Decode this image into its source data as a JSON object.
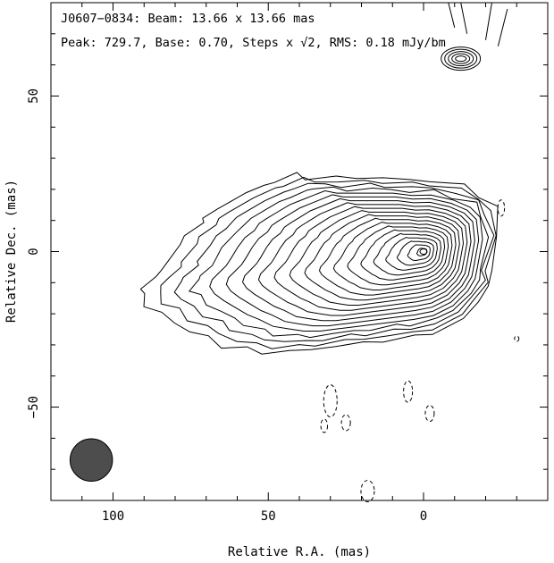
{
  "header": {
    "line1": "J0607−0834: Beam: 13.66 x 13.66 mas",
    "line2": "Peak: 729.7, Base: 0.70, Steps x √2, RMS: 0.18 mJy/bm"
  },
  "chart_data": {
    "type": "contour",
    "source": "J0607−0834",
    "beam_mas": [
      13.66,
      13.66
    ],
    "peak": 729.7,
    "base": 0.7,
    "step_factor": "√2",
    "rms": "0.18 mJy/bm",
    "xlabel": "Relative R.A. (mas)",
    "ylabel": "Relative Dec. (mas)",
    "xlim": [
      120,
      -40
    ],
    "ylim": [
      -80,
      80
    ],
    "x_ticks": [
      100,
      50,
      0
    ],
    "y_ticks": [
      50,
      0,
      -50
    ],
    "x_ticklabels": [
      "100",
      "50",
      "0"
    ],
    "y_ticklabels": [
      "50",
      "0",
      "−50"
    ],
    "core_position": [
      0,
      0
    ],
    "secondary_component_position": [
      -12,
      62
    ],
    "beam_position": [
      107,
      -67
    ],
    "beam_color": "#4d4d4d",
    "contour_count": 20,
    "negative_contours": "dashed"
  }
}
